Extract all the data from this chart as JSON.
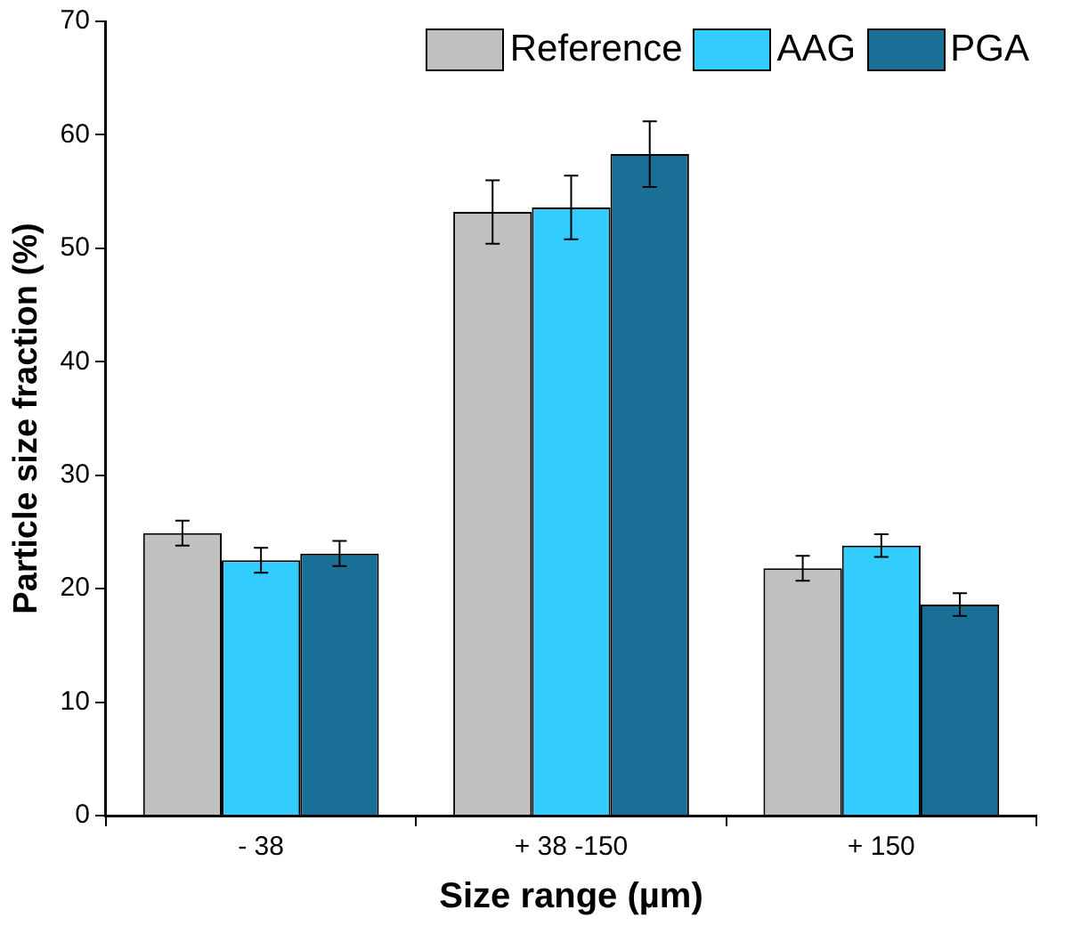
{
  "chart_data": {
    "type": "bar",
    "xlabel": "Size range (µm)",
    "ylabel": "Particle size fraction (%)",
    "categories": [
      "- 38",
      "+ 38 -150",
      "+ 150"
    ],
    "series": [
      {
        "name": "Reference",
        "color": "#c0c0c0",
        "values": [
          24.9,
          53.2,
          21.8
        ],
        "errors": [
          1.1,
          2.8,
          1.1
        ]
      },
      {
        "name": "AAG",
        "color": "#33ccff",
        "values": [
          22.5,
          53.6,
          23.8
        ],
        "errors": [
          1.1,
          2.8,
          1.0
        ]
      },
      {
        "name": "PGA",
        "color": "#1a6f96",
        "values": [
          23.1,
          58.3,
          18.6
        ],
        "errors": [
          1.1,
          2.9,
          1.0
        ]
      }
    ],
    "ylim": [
      0,
      70
    ],
    "yticks": [
      0,
      10,
      20,
      30,
      40,
      50,
      60,
      70
    ],
    "grid": false,
    "legend": "top right"
  }
}
